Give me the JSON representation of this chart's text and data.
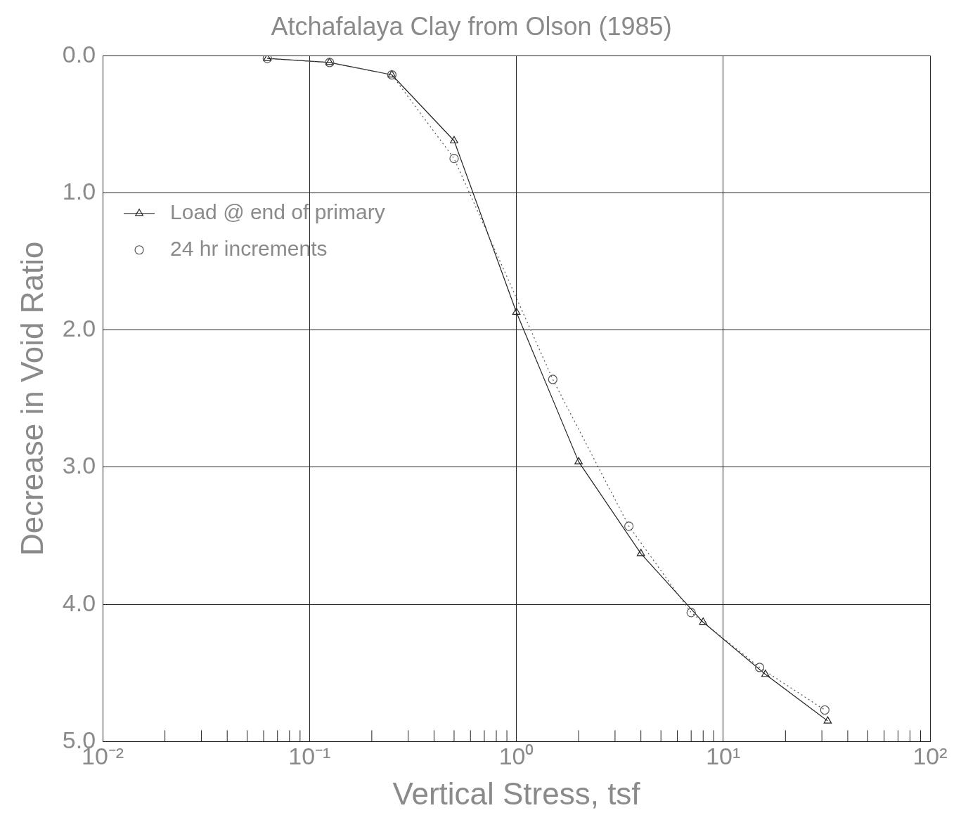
{
  "chart_data": {
    "type": "line",
    "title": "Atchafalaya Clay from Olson (1985)",
    "xlabel": "Vertical Stress, tsf",
    "ylabel": "Decrease in Void Ratio",
    "log": "x",
    "grid": true,
    "legend": "top left",
    "xlim": [
      0.01,
      100
    ],
    "xticks": [
      {
        "value": 0.01,
        "label": "10⁻²"
      },
      {
        "value": 0.02,
        "label": null
      },
      {
        "value": 0.03,
        "label": null
      },
      {
        "value": 0.04,
        "label": null
      },
      {
        "value": 0.05,
        "label": null
      },
      {
        "value": 0.06,
        "label": null
      },
      {
        "value": 0.07,
        "label": null
      },
      {
        "value": 0.08,
        "label": null
      },
      {
        "value": 0.09,
        "label": null
      },
      {
        "value": 0.1,
        "label": "10⁻¹"
      },
      {
        "value": 0.2,
        "label": null
      },
      {
        "value": 0.3,
        "label": null
      },
      {
        "value": 0.4,
        "label": null
      },
      {
        "value": 0.5,
        "label": null
      },
      {
        "value": 0.6,
        "label": null
      },
      {
        "value": 0.7,
        "label": null
      },
      {
        "value": 0.8,
        "label": null
      },
      {
        "value": 0.9,
        "label": null
      },
      {
        "value": 1,
        "label": "10⁰"
      },
      {
        "value": 2,
        "label": null
      },
      {
        "value": 3,
        "label": null
      },
      {
        "value": 4,
        "label": null
      },
      {
        "value": 5,
        "label": null
      },
      {
        "value": 6,
        "label": null
      },
      {
        "value": 7,
        "label": null
      },
      {
        "value": 8,
        "label": null
      },
      {
        "value": 9,
        "label": null
      },
      {
        "value": 10,
        "label": "10¹"
      },
      {
        "value": 20,
        "label": null
      },
      {
        "value": 30,
        "label": null
      },
      {
        "value": 40,
        "label": null
      },
      {
        "value": 50,
        "label": null
      },
      {
        "value": 60,
        "label": null
      },
      {
        "value": 70,
        "label": null
      },
      {
        "value": 80,
        "label": null
      },
      {
        "value": 90,
        "label": null
      },
      {
        "value": 100,
        "label": "10²"
      }
    ],
    "ylim": [
      5,
      0
    ],
    "yticks": [
      {
        "value": 0,
        "label": "0.0"
      },
      {
        "value": 1,
        "label": "1.0"
      },
      {
        "value": 2,
        "label": "2.0"
      },
      {
        "value": 3,
        "label": "3.0"
      },
      {
        "value": 4,
        "label": "4.0"
      },
      {
        "value": 5,
        "label": "5.0"
      }
    ],
    "series": [
      {
        "name": "Load @ end of primary",
        "color": "#222222",
        "marker": "triangle",
        "line_style": "solid",
        "x": [
          0.0625,
          0.125,
          0.25,
          0.5,
          1,
          2,
          4,
          8,
          16,
          32
        ],
        "values": [
          0.02,
          0.05,
          0.14,
          0.62,
          1.87,
          2.96,
          3.63,
          4.13,
          4.51,
          4.85
        ]
      },
      {
        "name": "24 hr increments",
        "color": "#555555",
        "marker": "circle",
        "line_style": "dotted",
        "x": [
          0.0625,
          0.125,
          0.25,
          0.5,
          1.5,
          3.5,
          7,
          15,
          31
        ],
        "values": [
          0.02,
          0.05,
          0.14,
          0.75,
          2.36,
          3.43,
          4.06,
          4.46,
          4.77
        ]
      }
    ]
  }
}
